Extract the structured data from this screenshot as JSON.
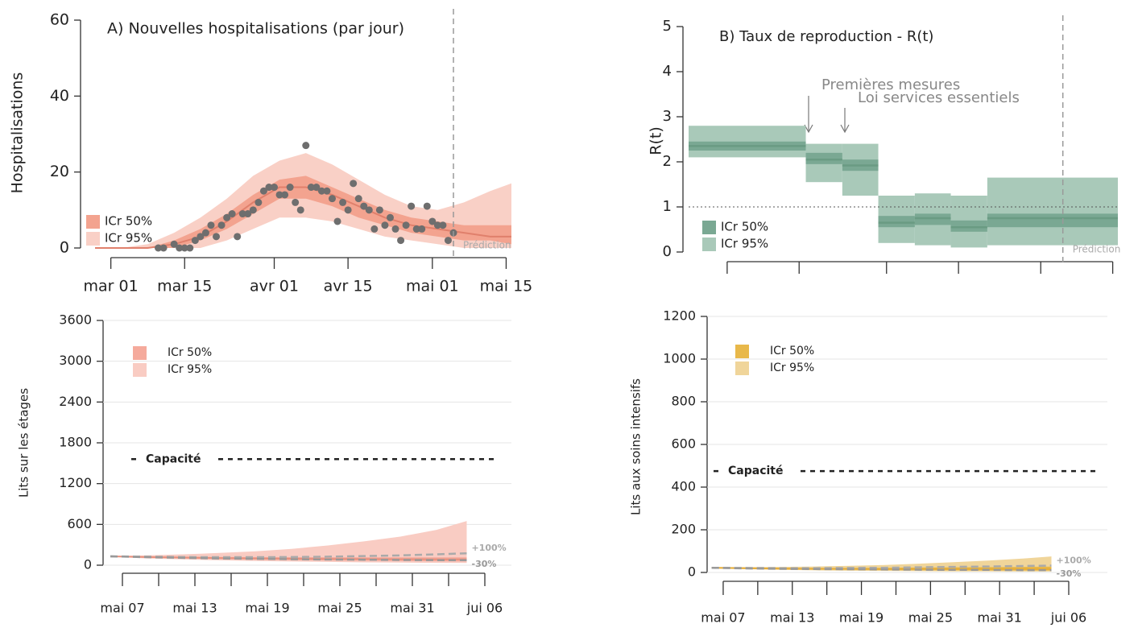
{
  "chart_data": [
    {
      "type": "scatter",
      "title": "A) Nouvelles hospitalisations (par jour)",
      "ylabel": "Hospitalisations",
      "xlim": [
        -3,
        76
      ],
      "ylim": [
        0,
        60
      ],
      "yticks": [
        0,
        20,
        40,
        60
      ],
      "xticks": [
        {
          "value": 0,
          "label": "mar 01"
        },
        {
          "value": 14,
          "label": "mar 15"
        },
        {
          "value": 31,
          "label": "avr 01"
        },
        {
          "value": 45,
          "label": "avr 15"
        },
        {
          "value": 61,
          "label": "mai 01"
        },
        {
          "value": 75,
          "label": "mai 15"
        }
      ],
      "legend": "bottom-left",
      "bands": {
        "x": [
          -3,
          2,
          7,
          12,
          17,
          22,
          27,
          32,
          37,
          42,
          47,
          52,
          57,
          62,
          67,
          72,
          76
        ],
        "series": [
          {
            "name": "ICr 50%",
            "color": "#f3a38f",
            "lower": [
              0,
              0,
              0,
              0,
              2,
              5,
              9,
              13,
              13,
              11,
              8,
              6,
              4,
              3,
              2,
              2,
              1
            ],
            "upper": [
              0,
              0,
              0,
              2,
              5,
              9,
              14,
              18,
              19,
              16,
              13,
              10,
              8,
              7,
              6,
              6,
              6
            ]
          },
          {
            "name": "ICr 95%",
            "color": "#f9d0c6",
            "lower": [
              0,
              0,
              0,
              0,
              0,
              2,
              5,
              8,
              8,
              7,
              5,
              3,
              2,
              1,
              0,
              0,
              0
            ],
            "upper": [
              0,
              0,
              1,
              4,
              8,
              13,
              19,
              23,
              25,
              22,
              18,
              14,
              11,
              10,
              12,
              15,
              17
            ]
          }
        ]
      },
      "median": {
        "color": "#e0806c",
        "values": [
          0,
          0,
          0,
          1,
          3,
          7,
          12,
          16,
          16,
          14,
          11,
          8,
          6,
          5,
          4,
          3,
          3
        ]
      },
      "points": {
        "color": "#6e6e6e",
        "x": [
          9,
          10,
          12,
          13,
          14,
          15,
          16,
          17,
          18,
          19,
          20,
          21,
          22,
          23,
          24,
          25,
          26,
          27,
          28,
          29,
          30,
          31,
          32,
          33,
          34,
          35,
          36,
          37,
          38,
          39,
          40,
          41,
          42,
          43,
          44,
          45,
          46,
          47,
          48,
          49,
          50,
          51,
          52,
          53,
          54,
          55,
          56,
          57,
          58,
          59,
          60,
          61,
          62,
          63,
          64,
          65
        ],
        "values": [
          0,
          0,
          1,
          0,
          0,
          0,
          2,
          3,
          4,
          6,
          3,
          6,
          8,
          9,
          3,
          9,
          9,
          10,
          12,
          15,
          16,
          16,
          14,
          14,
          16,
          12,
          10,
          27,
          16,
          16,
          15,
          15,
          13,
          7,
          12,
          10,
          17,
          13,
          11,
          10,
          5,
          10,
          6,
          8,
          5,
          2,
          6,
          11,
          5,
          5,
          11,
          7,
          6,
          6,
          2,
          4
        ]
      },
      "prediction": {
        "value": 65,
        "label": "Prédiction"
      }
    },
    {
      "type": "step",
      "title": "B) Taux de reproduction - R(t)",
      "ylabel": "R(t)",
      "xlim": [
        -7.5,
        76
      ],
      "ylim": [
        0,
        5
      ],
      "yticks": [
        0,
        1,
        2,
        3,
        4,
        5
      ],
      "xticks": [
        0,
        14,
        31,
        45,
        61,
        75
      ],
      "legend": "bottom-left",
      "refline": 1,
      "bands": {
        "edges": [
          -7.5,
          15.3,
          22.4,
          29.4,
          36.5,
          43.5,
          50.6,
          76
        ],
        "series": [
          {
            "name": "ICr 50%",
            "color": "#7aa893",
            "lower": [
              2.25,
              1.95,
              1.8,
              0.55,
              0.6,
              0.45,
              0.55
            ],
            "upper": [
              2.45,
              2.2,
              2.05,
              0.8,
              0.85,
              0.7,
              0.85
            ]
          },
          {
            "name": "ICr 95%",
            "color": "#a9c9b9",
            "lower": [
              2.1,
              1.55,
              1.25,
              0.2,
              0.15,
              0.1,
              0.15
            ],
            "upper": [
              2.8,
              2.4,
              2.4,
              1.25,
              1.3,
              1.25,
              1.65
            ]
          }
        ]
      },
      "median": {
        "color": "#6a9b83",
        "values": [
          2.35,
          2.05,
          1.92,
          0.65,
          0.75,
          0.55,
          0.75
        ]
      },
      "annotations": [
        "Premières mesures",
        "Loi services essentiels"
      ],
      "prediction": {
        "value": 65.3,
        "label": "Prédiction"
      }
    },
    {
      "type": "area",
      "ylabel": "Lits sur les étages",
      "grid": true,
      "xlim": [
        -1.5,
        32
      ],
      "ylim": [
        0,
        3600
      ],
      "yticks": [
        0,
        600,
        1200,
        1800,
        2400,
        3000,
        3600
      ],
      "xticks": [
        {
          "value": 0,
          "label": "mai 07"
        },
        3,
        {
          "value": 6,
          "label": "mai 13"
        },
        9,
        {
          "value": 12,
          "label": "mai 19"
        },
        15,
        {
          "value": 18,
          "label": "mai 25"
        },
        21,
        {
          "value": 24,
          "label": "mai 31"
        },
        27,
        {
          "value": 30,
          "label": "jui 06"
        }
      ],
      "legend": "top-left",
      "capacity": {
        "value": 1560,
        "label": "Capacité"
      },
      "bands": {
        "x": [
          -1,
          2,
          5,
          8,
          11,
          14,
          17,
          20,
          23,
          26,
          28.5
        ],
        "series": [
          {
            "name": "ICr 50%",
            "color": "#f5aa9c",
            "lower": [
              125,
              110,
              100,
              90,
              82,
              76,
              70,
              66,
              62,
              58,
              55
            ],
            "upper": [
              135,
              130,
              125,
              122,
              120,
              118,
              117,
              116,
              115,
              115,
              115
            ]
          },
          {
            "name": "ICr 95%",
            "color": "#f9ccc3",
            "lower": [
              125,
              100,
              85,
              72,
              62,
              55,
              48,
              42,
              38,
              34,
              32
            ],
            "upper": [
              135,
              145,
              160,
              180,
              205,
              240,
              290,
              350,
              420,
              520,
              650
            ]
          }
        ]
      },
      "median": {
        "color": "#e8907d",
        "values": [
          130,
          120,
          112,
          105,
          100,
          95,
          92,
          90,
          88,
          86,
          85
        ]
      },
      "scenarios": [
        {
          "name": "+100%",
          "color": "#aaaaaa",
          "values": [
            130,
            125,
            120,
            118,
            118,
            120,
            125,
            135,
            145,
            160,
            175
          ]
        },
        {
          "name": "-30%",
          "color": "#999999",
          "values": [
            130,
            118,
            108,
            100,
            94,
            88,
            84,
            80,
            77,
            75,
            74
          ]
        }
      ]
    },
    {
      "type": "area",
      "ylabel": "Lits aux soins intensifs",
      "grid": true,
      "xlim": [
        -1.5,
        32
      ],
      "ylim": [
        0,
        1200
      ],
      "yticks": [
        0,
        200,
        400,
        600,
        800,
        1000,
        1200
      ],
      "xticks": [
        {
          "value": 0,
          "label": "mai 07"
        },
        3,
        {
          "value": 6,
          "label": "mai 13"
        },
        9,
        {
          "value": 12,
          "label": "mai 19"
        },
        15,
        {
          "value": 18,
          "label": "mai 25"
        },
        21,
        {
          "value": 24,
          "label": "mai 31"
        },
        27,
        {
          "value": 30,
          "label": "jui 06"
        }
      ],
      "legend": "top-left",
      "capacity": {
        "value": 475,
        "label": "Capacité"
      },
      "bands": {
        "x": [
          -1,
          2,
          5,
          8,
          11,
          14,
          17,
          20,
          23,
          26,
          28.5
        ],
        "series": [
          {
            "name": "ICr 50%",
            "color": "#e8b84a",
            "lower": [
              20,
              17,
              15,
              13,
              12,
              11,
              10,
              10,
              9,
              9,
              9
            ],
            "upper": [
              24,
              22,
              21,
              21,
              21,
              22,
              23,
              24,
              25,
              26,
              27
            ]
          },
          {
            "name": "ICr 95%",
            "color": "#f0d59a",
            "lower": [
              19,
              15,
              12,
              10,
              8,
              7,
              6,
              5,
              5,
              4,
              4
            ],
            "upper": [
              25,
              25,
              26,
              28,
              31,
              35,
              41,
              48,
              56,
              65,
              75
            ]
          }
        ]
      },
      "median": {
        "color": "#e8ad35",
        "values": [
          22,
          20,
          18,
          17,
          17,
          16,
          16,
          16,
          16,
          16,
          16
        ]
      },
      "scenarios": [
        {
          "name": "+100%",
          "color": "#aaaaaa",
          "values": [
            22,
            21,
            20,
            20,
            21,
            22,
            24,
            26,
            28,
            30,
            32
          ]
        },
        {
          "name": "-30%",
          "color": "#999999",
          "values": [
            22,
            19,
            17,
            16,
            15,
            14,
            13,
            12,
            12,
            11,
            11
          ]
        }
      ]
    }
  ]
}
